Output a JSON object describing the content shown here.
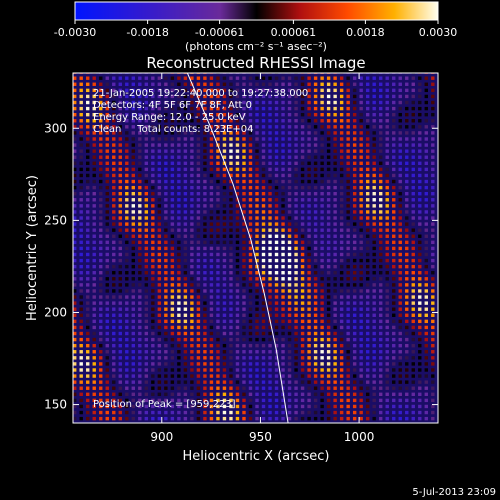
{
  "chart_data": {
    "type": "heatmap",
    "title": "Reconstructed RHESSI Image",
    "xlabel": "Heliocentric X (arcsec)",
    "ylabel": "Heliocentric Y (arcsec)",
    "xlim": [
      855,
      1040
    ],
    "ylim": [
      140,
      330
    ],
    "x_ticks": [
      900,
      950,
      1000
    ],
    "y_ticks": [
      150,
      200,
      250,
      300
    ],
    "colorbar": {
      "range": [
        -0.003,
        0.003
      ],
      "tick_values": [
        -0.003,
        -0.0018,
        -0.00061,
        0.00061,
        0.0018,
        0.003
      ],
      "tick_labels": [
        "-0.0030",
        "-0.0018",
        "-0.00061",
        "0.00061",
        "0.0018",
        "0.0030"
      ],
      "units_label": "(photons cm⁻² s⁻¹ asec⁻²)"
    },
    "annotations": [
      "21-Jan-2005 19:22:40.000 to 19:27:38.000",
      "Detectors: 4F 5F 6F 7F 8F, Att 0",
      "Energy Range: 12.0 - 25.0 keV",
      "Clean     Total counts: 8.23E+04"
    ],
    "peak_label": "Position of Peak = [959,223]",
    "peak": [
      959,
      223
    ],
    "limb_curve": [
      [
        913,
        330
      ],
      [
        925,
        300
      ],
      [
        936,
        270
      ],
      [
        945,
        240
      ],
      [
        952,
        210
      ],
      [
        958,
        180
      ],
      [
        964,
        140
      ]
    ],
    "timestamp": "5-Jul-2013 23:09"
  }
}
